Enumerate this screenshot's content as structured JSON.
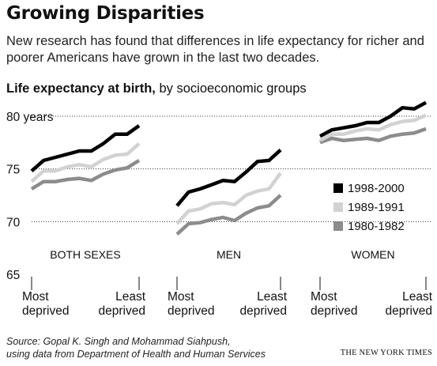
{
  "header": {
    "title": "Growing Disparities",
    "dek": "New research has found that differences in life expectancy for richer and poorer Americans have grown in the last two decades.",
    "subtitle_bold": "Life expectancy at birth,",
    "subtitle_rest": " by socioeconomic groups"
  },
  "chart_data": {
    "type": "line",
    "title": "Life expectancy at birth, by socioeconomic groups",
    "y_unit": "years",
    "ylim": [
      65,
      80
    ],
    "yticks": [
      {
        "value": 80,
        "label": "80 years"
      },
      {
        "value": 75,
        "label": "75"
      },
      {
        "value": 70,
        "label": "70"
      },
      {
        "value": 65,
        "label": "65"
      }
    ],
    "x_label_left": [
      "Most",
      "deprived"
    ],
    "x_label_right": [
      "Least",
      "deprived"
    ],
    "legend": {
      "placement": "inside-right",
      "entries": [
        {
          "name": "1998-2000",
          "color": "#000000"
        },
        {
          "name": "1989-1991",
          "color": "#d2d2d2"
        },
        {
          "name": "1980-1982",
          "color": "#8c8c8c"
        }
      ]
    },
    "panels": [
      {
        "label": "BOTH SEXES",
        "series": [
          {
            "name": "1998-2000",
            "values": [
              74.8,
              75.8,
              76.1,
              76.4,
              76.7,
              76.7,
              77.4,
              78.3,
              78.3,
              79.1
            ]
          },
          {
            "name": "1989-1991",
            "values": [
              73.8,
              74.8,
              74.8,
              75.2,
              75.4,
              75.2,
              75.9,
              76.3,
              76.4,
              77.4
            ]
          },
          {
            "name": "1980-1982",
            "values": [
              73.1,
              73.8,
              73.8,
              74.0,
              74.1,
              73.9,
              74.5,
              74.9,
              75.1,
              75.8
            ]
          }
        ]
      },
      {
        "label": "MEN",
        "series": [
          {
            "name": "1998-2000",
            "values": [
              71.5,
              72.8,
              73.1,
              73.5,
              73.9,
              73.8,
              74.7,
              75.7,
              75.8,
              76.8
            ]
          },
          {
            "name": "1989-1991",
            "values": [
              69.8,
              71.0,
              71.2,
              71.7,
              71.8,
              71.6,
              72.5,
              72.9,
              73.1,
              74.6
            ]
          },
          {
            "name": "1980-1982",
            "values": [
              68.8,
              69.8,
              69.9,
              70.2,
              70.4,
              70.1,
              70.8,
              71.3,
              71.5,
              72.5
            ]
          }
        ]
      },
      {
        "label": "WOMEN",
        "series": [
          {
            "name": "1998-2000",
            "values": [
              78.1,
              78.7,
              78.9,
              79.1,
              79.4,
              79.4,
              80.0,
              80.8,
              80.7,
              81.3
            ]
          },
          {
            "name": "1989-1991",
            "values": [
              77.7,
              78.3,
              78.3,
              78.6,
              78.8,
              78.7,
              79.2,
              79.5,
              79.6,
              80.1
            ]
          },
          {
            "name": "1980-1982",
            "values": [
              77.5,
              77.9,
              77.7,
              77.8,
              77.9,
              77.7,
              78.1,
              78.3,
              78.4,
              78.8
            ]
          }
        ]
      }
    ]
  },
  "footer": {
    "source_line1": "Source: Gopal K. Singh and Mohammad Siahpush,",
    "source_line2": "using data from Department of Health and Human Services",
    "credit": "THE NEW YORK TIMES"
  }
}
